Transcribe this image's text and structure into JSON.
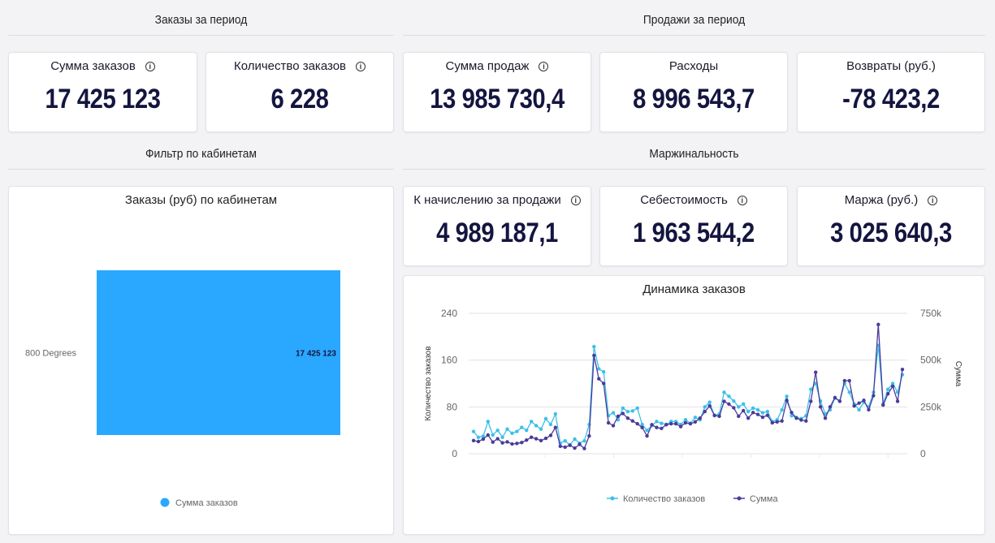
{
  "sections": {
    "orders_period": "Заказы за период",
    "sales_period": "Продажи за период",
    "cabinet_filter": "Фильтр по кабинетам",
    "margin": "Маржинальность"
  },
  "kpis": {
    "orders_sum": {
      "label": "Сумма заказов",
      "value": "17 425 123"
    },
    "orders_count": {
      "label": "Количество заказов",
      "value": "6 228"
    },
    "sales_sum": {
      "label": "Сумма продаж",
      "value": "13 985 730,4"
    },
    "expenses": {
      "label": "Расходы",
      "value": "8 996 543,7"
    },
    "returns": {
      "label": "Возвраты (руб.)",
      "value": "-78 423,2"
    },
    "accrual": {
      "label": "К начислению за продажи",
      "value": "4 989 187,1"
    },
    "cost": {
      "label": "Себестоимость",
      "value": "1 963 544,2"
    },
    "margin": {
      "label": "Маржа (руб.)",
      "value": "3 025 640,3"
    }
  },
  "info_icon": "info-icon",
  "colors": {
    "bar": "#2aa8ff",
    "series_count": "#3cc0e8",
    "series_sum": "#4b3b9a",
    "value_text": "#14153f"
  },
  "chart_data": [
    {
      "type": "bar",
      "title": "Заказы (руб) по кабинетам",
      "orientation": "horizontal",
      "categories": [
        "800 Degrees"
      ],
      "series": [
        {
          "name": "Сумма заказов",
          "values": [
            17425123
          ]
        }
      ],
      "data_labels": [
        "17 425 123"
      ],
      "legend": "bottom"
    },
    {
      "type": "line",
      "title": "Динамика заказов",
      "ylabel": "Количество заказов",
      "y2label": "Сумма",
      "ylim": [
        0,
        240
      ],
      "y2lim": [
        0,
        750000
      ],
      "yticks": [
        "0",
        "80",
        "160",
        "240"
      ],
      "y2ticks": [
        "0",
        "250k",
        "500k",
        "750k"
      ],
      "grid": true,
      "legend": "bottom",
      "series": [
        {
          "name": "Количество заказов",
          "axis": "left",
          "values": [
            38,
            28,
            30,
            55,
            32,
            40,
            28,
            42,
            35,
            38,
            45,
            40,
            55,
            48,
            42,
            60,
            50,
            68,
            18,
            22,
            15,
            25,
            18,
            22,
            50,
            183,
            145,
            140,
            65,
            70,
            58,
            78,
            72,
            73,
            78,
            50,
            40,
            48,
            55,
            52,
            50,
            55,
            55,
            50,
            58,
            52,
            62,
            58,
            80,
            88,
            65,
            68,
            105,
            98,
            90,
            80,
            85,
            72,
            78,
            75,
            70,
            72,
            55,
            58,
            75,
            98,
            65,
            62,
            60,
            65,
            110,
            120,
            90,
            68,
            75,
            95,
            90,
            120,
            105,
            85,
            75,
            88,
            80,
            105,
            185,
            85,
            110,
            120,
            105,
            135
          ]
        },
        {
          "name": "Сумма",
          "axis": "right",
          "values": [
            70000,
            65000,
            78000,
            100000,
            62000,
            80000,
            58000,
            63000,
            52000,
            55000,
            60000,
            73000,
            88000,
            80000,
            70000,
            82000,
            98000,
            140000,
            40000,
            35000,
            45000,
            30000,
            50000,
            28000,
            95000,
            525000,
            400000,
            375000,
            165000,
            150000,
            200000,
            215000,
            190000,
            175000,
            160000,
            140000,
            95000,
            155000,
            140000,
            135000,
            155000,
            160000,
            160000,
            145000,
            165000,
            160000,
            170000,
            190000,
            225000,
            255000,
            205000,
            200000,
            280000,
            265000,
            245000,
            200000,
            230000,
            190000,
            220000,
            210000,
            195000,
            205000,
            165000,
            170000,
            175000,
            285000,
            220000,
            190000,
            180000,
            175000,
            280000,
            435000,
            250000,
            190000,
            250000,
            300000,
            280000,
            390000,
            390000,
            255000,
            270000,
            285000,
            235000,
            310000,
            690000,
            260000,
            320000,
            360000,
            280000,
            450000
          ]
        }
      ]
    }
  ]
}
